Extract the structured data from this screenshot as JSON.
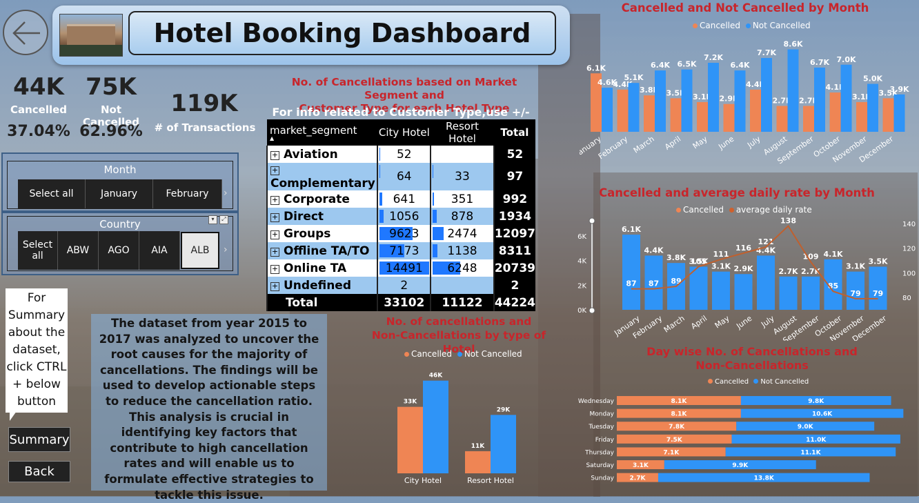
{
  "header": {
    "title": "Hotel Booking Dashboard"
  },
  "icons": {
    "back": "arrow-left-icon",
    "hotel": "hotel-photo-icon",
    "expand": "plus-box-icon",
    "filter": "filter-icon",
    "focus": "focus-mode-icon",
    "scroll": "chevron-right-icon"
  },
  "colors": {
    "cancelled": "#ef8554",
    "not_cancelled": "#2f94f7",
    "title_red": "#c8252b",
    "header": "#a9cdee"
  },
  "kpis": {
    "cancelled_value": "44K",
    "cancelled_label": "Cancelled",
    "cancelled_pct": "37.04%",
    "not_cancelled_value": "75K",
    "not_cancelled_label": "Not Cancelled",
    "not_cancelled_pct": "62.96%",
    "transactions_value": "119K",
    "transactions_label": "# of Transactions"
  },
  "month_slicer": {
    "title": "Month",
    "items": [
      "Select all",
      "January",
      "February"
    ]
  },
  "country_slicer": {
    "title": "Country",
    "items": [
      "Select all",
      "ABW",
      "AGO",
      "AIA",
      "ALB"
    ],
    "selected": "ALB"
  },
  "matrix": {
    "title_line1": "No. of Cancellations based on Market Segment and",
    "title_line2": "Customer Type for each Hotel Type",
    "info": "For info related to Customer Type,use +/-",
    "headers": [
      "market_segment",
      "City Hotel",
      "Resort Hotel",
      "Total"
    ],
    "rows": [
      {
        "segment": "Aviation",
        "city": "52",
        "resort": "",
        "total": "52"
      },
      {
        "segment": "Complementary",
        "city": "64",
        "resort": "33",
        "total": "97"
      },
      {
        "segment": "Corporate",
        "city": "641",
        "resort": "351",
        "total": "992"
      },
      {
        "segment": "Direct",
        "city": "1056",
        "resort": "878",
        "total": "1934"
      },
      {
        "segment": "Groups",
        "city": "9623",
        "resort": "2474",
        "total": "12097"
      },
      {
        "segment": "Offline TA/TO",
        "city": "7173",
        "resort": "1138",
        "total": "8311"
      },
      {
        "segment": "Online TA",
        "city": "14491",
        "resort": "6248",
        "total": "20739"
      },
      {
        "segment": "Undefined",
        "city": "2",
        "resort": "",
        "total": "2"
      }
    ],
    "total_row": {
      "label": "Total",
      "city": "33102",
      "resort": "11122",
      "total": "44224"
    },
    "bar_fraction_city": [
      0.004,
      0.004,
      0.044,
      0.073,
      0.664,
      0.495,
      1.0,
      0.0
    ],
    "bar_fraction_resort": [
      0.0,
      0.005,
      0.056,
      0.141,
      0.396,
      0.182,
      1.0,
      0.0
    ]
  },
  "callout": {
    "text": "For Summary about the dataset, click CTRL + below button"
  },
  "buttons": {
    "summary": "Summary",
    "back": "Back"
  },
  "summary_text": "The dataset from year 2015 to 2017 was analyzed to uncover the root causes for the majority of cancellations. The findings will be used to develop actionable steps to reduce the cancellation ratio. This analysis is crucial in identifying key factors that contribute to high cancellation rates and will enable us to formulate effective strategies to tackle this issue.",
  "chart_data": [
    {
      "id": "monthly",
      "type": "bar",
      "title": "Cancelled and Not Cancelled by Month",
      "legend": [
        "Cancelled",
        "Not Cancelled"
      ],
      "categories": [
        "January",
        "February",
        "March",
        "April",
        "May",
        "June",
        "July",
        "August",
        "September",
        "October",
        "November",
        "December"
      ],
      "series": [
        {
          "name": "Cancelled",
          "values": [
            6.1,
            4.4,
            3.8,
            3.5,
            3.1,
            2.9,
            4.4,
            2.7,
            2.7,
            4.1,
            3.1,
            3.5
          ],
          "labels": [
            "6.1K",
            "4.4K",
            "3.8K",
            "3.5K",
            "3.1K",
            "2.9K",
            "4.4K",
            "2.7K",
            "2.7K",
            "4.1K",
            "3.1K",
            "3.5K"
          ]
        },
        {
          "name": "Not Cancelled",
          "values": [
            4.6,
            5.1,
            6.4,
            6.5,
            7.2,
            6.4,
            7.7,
            8.6,
            6.7,
            7.0,
            5.0,
            3.9
          ],
          "labels": [
            "4.6K",
            "5.1K",
            "6.4K",
            "6.5K",
            "7.2K",
            "6.4K",
            "7.7K",
            "8.6K",
            "6.7K",
            "7.0K",
            "5.0K",
            "3.9K"
          ]
        }
      ],
      "ylim": [
        0,
        9
      ]
    },
    {
      "id": "adr",
      "type": "bar",
      "title": "Cancelled and average daily rate by Month",
      "legend": [
        "Cancelled",
        "average daily rate"
      ],
      "categories": [
        "January",
        "February",
        "March",
        "April",
        "May",
        "June",
        "July",
        "August",
        "September",
        "October",
        "November",
        "December"
      ],
      "series": [
        {
          "name": "Cancelled",
          "values": [
            6.1,
            4.4,
            3.8,
            3.5,
            3.1,
            2.9,
            4.4,
            2.7,
            2.7,
            4.1,
            3.1,
            3.5
          ],
          "labels": [
            "6.1K",
            "4.4K",
            "3.8K",
            "3.5K",
            "3.1K",
            "2.9K",
            "4.4K",
            "2.7K",
            "2.7K",
            "4.1K",
            "3.1K",
            "3.5K"
          ]
        },
        {
          "name": "average daily rate",
          "values": [
            87,
            87,
            89,
            105,
            111,
            116,
            121,
            138,
            109,
            85,
            79,
            79
          ],
          "labels": [
            "87",
            "87",
            "89",
            "105",
            "111",
            "116",
            "121",
            "138",
            "109",
            "85",
            "79",
            "79"
          ]
        }
      ],
      "y_left_ticks": [
        "0K",
        "2K",
        "4K",
        "6K"
      ],
      "y_right_ticks": [
        "80",
        "100",
        "120",
        "140"
      ],
      "ylim": [
        0,
        7
      ],
      "y2lim": [
        70,
        140
      ]
    },
    {
      "id": "hotel_type",
      "type": "bar",
      "title_line1": "No. of cancellations and",
      "title_line2": "Non-Cancellations by type of Hotel",
      "legend": [
        "Cancelled",
        "Not Cancelled"
      ],
      "categories": [
        "City Hotel",
        "Resort Hotel"
      ],
      "series": [
        {
          "name": "Cancelled",
          "values": [
            33,
            11
          ],
          "labels": [
            "33K",
            "11K"
          ]
        },
        {
          "name": "Not Cancelled",
          "values": [
            46,
            29
          ],
          "labels": [
            "46K",
            "29K"
          ]
        }
      ],
      "ylim": [
        0,
        50
      ]
    },
    {
      "id": "day_wise",
      "type": "bar",
      "title_line1": "Day wise No. of Cancellations and",
      "title_line2": "Non-Cancellations",
      "legend": [
        "Cancelled",
        "Not Cancelled"
      ],
      "categories": [
        "Wednesday",
        "Monday",
        "Tuesday",
        "Friday",
        "Thursday",
        "Saturday",
        "Sunday"
      ],
      "series": [
        {
          "name": "Cancelled",
          "values": [
            8.1,
            8.1,
            7.8,
            7.5,
            7.1,
            3.1,
            2.7
          ],
          "labels": [
            "8.1K",
            "8.1K",
            "7.8K",
            "7.5K",
            "7.1K",
            "3.1K",
            "2.7K"
          ]
        },
        {
          "name": "Not Cancelled",
          "values": [
            9.8,
            10.6,
            9.0,
            11.0,
            11.1,
            9.9,
            13.8
          ],
          "labels": [
            "9.8K",
            "10.6K",
            "9.0K",
            "11.0K",
            "11.1K",
            "9.9K",
            "13.8K"
          ]
        }
      ],
      "xlim": [
        0,
        19
      ]
    }
  ]
}
